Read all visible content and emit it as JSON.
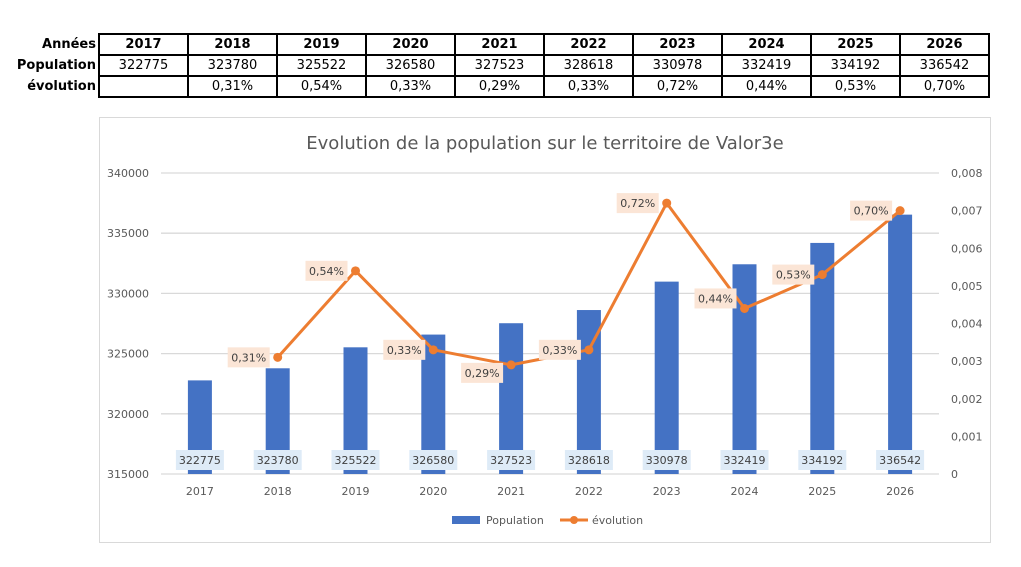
{
  "table": {
    "row_headers": [
      "Années",
      "Population",
      "évolution"
    ],
    "years": [
      "2017",
      "2018",
      "2019",
      "2020",
      "2021",
      "2022",
      "2023",
      "2024",
      "2025",
      "2026"
    ],
    "population": [
      "322775",
      "323780",
      "325522",
      "326580",
      "327523",
      "328618",
      "330978",
      "332419",
      "334192",
      "336542"
    ],
    "evolution": [
      "",
      "0,31%",
      "0,54%",
      "0,33%",
      "0,29%",
      "0,33%",
      "0,72%",
      "0,44%",
      "0,53%",
      "0,70%"
    ]
  },
  "chart_data": {
    "type": "bar+line",
    "title": "Evolution de la population sur le territoire de Valor3e",
    "categories": [
      "2017",
      "2018",
      "2019",
      "2020",
      "2021",
      "2022",
      "2023",
      "2024",
      "2025",
      "2026"
    ],
    "series": [
      {
        "name": "Population",
        "type": "bar",
        "axis": "left",
        "color": "#4472c4",
        "values": [
          322775,
          323780,
          325522,
          326580,
          327523,
          328618,
          330978,
          332419,
          334192,
          336542
        ],
        "labels": [
          "322775",
          "323780",
          "325522",
          "326580",
          "327523",
          "328618",
          "330978",
          "332419",
          "334192",
          "336542"
        ]
      },
      {
        "name": "évolution",
        "type": "line",
        "axis": "right",
        "color": "#ed7d31",
        "values": [
          null,
          0.0031,
          0.0054,
          0.0033,
          0.0029,
          0.0033,
          0.0072,
          0.0044,
          0.0053,
          0.007
        ],
        "labels": [
          "",
          "0,31%",
          "0,54%",
          "0,33%",
          "0,29%",
          "0,33%",
          "0,72%",
          "0,44%",
          "0,53%",
          "0,70%"
        ]
      }
    ],
    "ylim_left": [
      315000,
      340000
    ],
    "yticks_left": [
      "315000",
      "320000",
      "325000",
      "330000",
      "335000",
      "340000"
    ],
    "ylim_right": [
      0,
      0.008
    ],
    "yticks_right": [
      "0",
      "0,001",
      "0,002",
      "0,003",
      "0,004",
      "0,005",
      "0,006",
      "0,007",
      "0,008"
    ],
    "grid": true,
    "legend": "bottom"
  }
}
